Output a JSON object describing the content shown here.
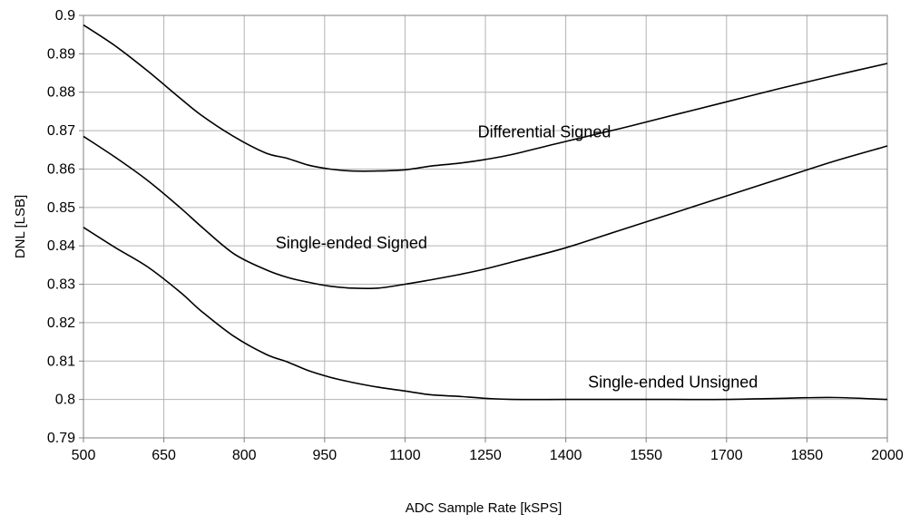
{
  "chart_data": {
    "type": "line",
    "title": "",
    "xlabel": "ADC Sample Rate  [kSPS]",
    "ylabel": "DNL [LSB]",
    "xlim": [
      500,
      2000
    ],
    "ylim": [
      0.79,
      0.9
    ],
    "x_ticks": [
      "500",
      "650",
      "800",
      "950",
      "1100",
      "1250",
      "1400",
      "1550",
      "1700",
      "1850",
      "2000"
    ],
    "y_ticks": [
      "0.9",
      "0.89",
      "0.88",
      "0.87",
      "0.86",
      "0.85",
      "0.84",
      "0.83",
      "0.82",
      "0.81",
      "0.8",
      "0.79"
    ],
    "grid": true,
    "legend": "none",
    "series": [
      {
        "name": "Differential Signed",
        "x": [
          500,
          560,
          620,
          680,
          720,
          780,
          840,
          880,
          920,
          960,
          1000,
          1050,
          1100,
          1150,
          1200,
          1250,
          1300,
          1400,
          1500,
          1600,
          1700,
          1800,
          1900,
          2000
        ],
        "y": [
          0.8975,
          0.892,
          0.8855,
          0.8785,
          0.874,
          0.8685,
          0.8642,
          0.8628,
          0.861,
          0.86,
          0.8595,
          0.8595,
          0.8598,
          0.8608,
          0.8615,
          0.8625,
          0.8638,
          0.8672,
          0.8705,
          0.874,
          0.8775,
          0.881,
          0.8843,
          0.8875
        ]
      },
      {
        "name": "Single-ended Signed",
        "x": [
          500,
          560,
          620,
          680,
          720,
          780,
          840,
          880,
          920,
          960,
          1000,
          1050,
          1100,
          1150,
          1200,
          1250,
          1300,
          1400,
          1500,
          1600,
          1700,
          1800,
          1900,
          2000
        ],
        "y": [
          0.8685,
          0.863,
          0.857,
          0.85,
          0.845,
          0.838,
          0.8338,
          0.8318,
          0.8305,
          0.8295,
          0.829,
          0.829,
          0.83,
          0.8312,
          0.8325,
          0.834,
          0.8358,
          0.8395,
          0.844,
          0.8485,
          0.853,
          0.8575,
          0.862,
          0.866
        ]
      },
      {
        "name": "Single-ended Unsigned",
        "x": [
          500,
          560,
          620,
          680,
          720,
          780,
          840,
          880,
          920,
          960,
          1000,
          1050,
          1100,
          1150,
          1200,
          1250,
          1300,
          1400,
          1500,
          1600,
          1700,
          1800,
          1900,
          2000
        ],
        "y": [
          0.8448,
          0.8395,
          0.8345,
          0.828,
          0.823,
          0.8165,
          0.8118,
          0.8098,
          0.8075,
          0.8058,
          0.8045,
          0.8032,
          0.8022,
          0.8012,
          0.8008,
          0.8003,
          0.8,
          0.8,
          0.8,
          0.8,
          0.8,
          0.8003,
          0.8005,
          0.8
        ]
      }
    ]
  }
}
